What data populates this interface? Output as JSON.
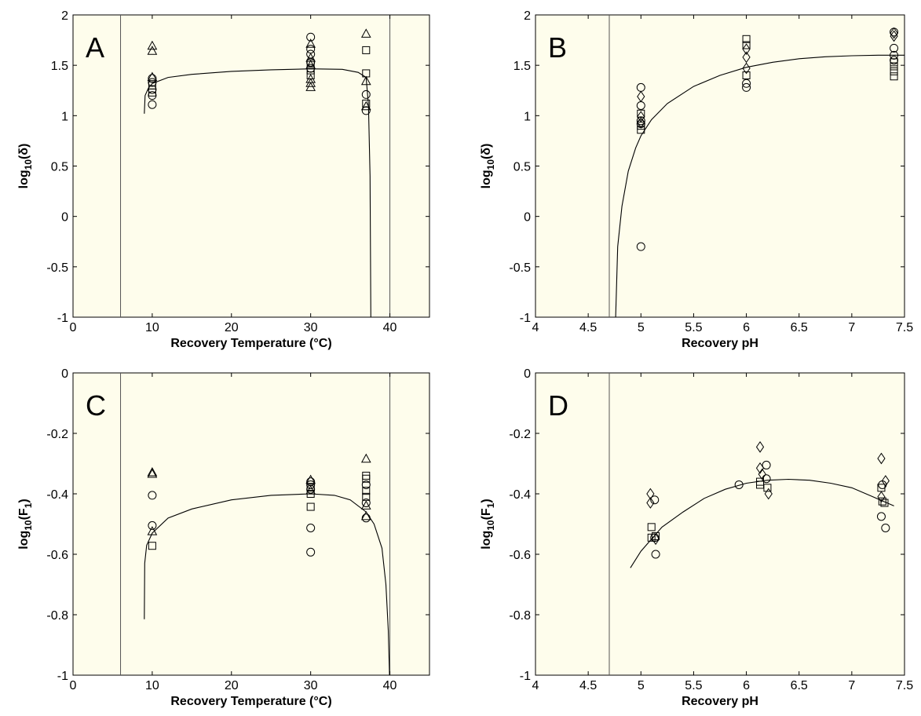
{
  "chart_data": [
    {
      "type": "scatter",
      "panel_label": "A",
      "xlabel": "Recovery Temperature (°C)",
      "ylabel_base": "log",
      "ylabel_sub": "10",
      "ylabel_arg": "(δ)",
      "xlim": [
        0,
        45
      ],
      "ylim": [
        -1,
        2
      ],
      "xticks": [
        0,
        10,
        20,
        30,
        40
      ],
      "yticks": [
        -1,
        -0.5,
        0,
        0.5,
        1,
        1.5,
        2
      ],
      "shaded_below": 6,
      "shaded_above": 40,
      "vlines": [
        6,
        40
      ],
      "curve": [
        [
          9.0,
          1.02
        ],
        [
          9.1,
          1.2
        ],
        [
          9.5,
          1.27
        ],
        [
          10,
          1.32
        ],
        [
          12,
          1.38
        ],
        [
          15,
          1.41
        ],
        [
          20,
          1.44
        ],
        [
          25,
          1.455
        ],
        [
          30,
          1.465
        ],
        [
          34,
          1.46
        ],
        [
          36,
          1.43
        ],
        [
          37,
          1.38
        ],
        [
          37.3,
          1.1
        ],
        [
          37.5,
          0.4
        ],
        [
          37.6,
          -1.0
        ]
      ],
      "points": [
        {
          "shape": "circle",
          "x": 10,
          "y": 1.11
        },
        {
          "shape": "circle",
          "x": 10,
          "y": 1.2
        },
        {
          "shape": "circle",
          "x": 10,
          "y": 1.26
        },
        {
          "shape": "circle",
          "x": 10,
          "y": 1.33
        },
        {
          "shape": "circle",
          "x": 10,
          "y": 1.37
        },
        {
          "shape": "square",
          "x": 10,
          "y": 1.23
        },
        {
          "shape": "square",
          "x": 10,
          "y": 1.3
        },
        {
          "shape": "triangle",
          "x": 10,
          "y": 1.69
        },
        {
          "shape": "triangle",
          "x": 10,
          "y": 1.64
        },
        {
          "shape": "triangle",
          "x": 10,
          "y": 1.38
        },
        {
          "shape": "circle",
          "x": 30,
          "y": 1.78
        },
        {
          "shape": "circle",
          "x": 30,
          "y": 1.66
        },
        {
          "shape": "circle",
          "x": 30,
          "y": 1.61
        },
        {
          "shape": "circle",
          "x": 30,
          "y": 1.53
        },
        {
          "shape": "circle",
          "x": 30,
          "y": 1.47
        },
        {
          "shape": "square",
          "x": 30,
          "y": 1.4
        },
        {
          "shape": "square",
          "x": 30,
          "y": 1.45
        },
        {
          "shape": "square",
          "x": 30,
          "y": 1.52
        },
        {
          "shape": "triangle",
          "x": 30,
          "y": 1.71
        },
        {
          "shape": "triangle",
          "x": 30,
          "y": 1.57
        },
        {
          "shape": "triangle",
          "x": 30,
          "y": 1.5
        },
        {
          "shape": "triangle",
          "x": 30,
          "y": 1.36
        },
        {
          "shape": "triangle",
          "x": 30,
          "y": 1.32
        },
        {
          "shape": "triangle",
          "x": 30,
          "y": 1.28
        },
        {
          "shape": "triangle",
          "x": 37,
          "y": 1.81
        },
        {
          "shape": "square",
          "x": 37,
          "y": 1.65
        },
        {
          "shape": "square",
          "x": 37,
          "y": 1.42
        },
        {
          "shape": "triangle",
          "x": 37,
          "y": 1.34
        },
        {
          "shape": "circle",
          "x": 37,
          "y": 1.21
        },
        {
          "shape": "square",
          "x": 37,
          "y": 1.12
        },
        {
          "shape": "triangle",
          "x": 37,
          "y": 1.09
        },
        {
          "shape": "circle",
          "x": 37,
          "y": 1.05
        }
      ]
    },
    {
      "type": "scatter",
      "panel_label": "B",
      "xlabel": "Recovery pH",
      "ylabel_base": "log",
      "ylabel_sub": "10",
      "ylabel_arg": "(δ)",
      "xlim": [
        4,
        7.5
      ],
      "ylim": [
        -1,
        2
      ],
      "xticks": [
        4,
        4.5,
        5,
        5.5,
        6,
        6.5,
        7,
        7.5
      ],
      "yticks": [
        -1,
        -0.5,
        0,
        0.5,
        1,
        1.5,
        2
      ],
      "shaded_below": 4.7,
      "vlines": [
        4.7
      ],
      "curve": [
        [
          4.76,
          -1.0
        ],
        [
          4.78,
          -0.3
        ],
        [
          4.82,
          0.1
        ],
        [
          4.88,
          0.45
        ],
        [
          4.95,
          0.68
        ],
        [
          5.0,
          0.8
        ],
        [
          5.1,
          0.96
        ],
        [
          5.25,
          1.12
        ],
        [
          5.5,
          1.29
        ],
        [
          5.75,
          1.4
        ],
        [
          6.0,
          1.48
        ],
        [
          6.25,
          1.53
        ],
        [
          6.5,
          1.565
        ],
        [
          6.75,
          1.585
        ],
        [
          7.0,
          1.595
        ],
        [
          7.25,
          1.6
        ],
        [
          7.5,
          1.6
        ]
      ],
      "points": [
        {
          "shape": "circle",
          "x": 5,
          "y": 1.28
        },
        {
          "shape": "circle",
          "x": 5,
          "y": 1.1
        },
        {
          "shape": "circle",
          "x": 5,
          "y": 0.95
        },
        {
          "shape": "circle",
          "x": 5,
          "y": 0.92
        },
        {
          "shape": "circle",
          "x": 5,
          "y": -0.3
        },
        {
          "shape": "diamond",
          "x": 5,
          "y": 1.19
        },
        {
          "shape": "diamond",
          "x": 5,
          "y": 0.99
        },
        {
          "shape": "diamond",
          "x": 5,
          "y": 0.93
        },
        {
          "shape": "square",
          "x": 5,
          "y": 1.02
        },
        {
          "shape": "square",
          "x": 5,
          "y": 0.9
        },
        {
          "shape": "square",
          "x": 5,
          "y": 0.86
        },
        {
          "shape": "square",
          "x": 6,
          "y": 1.76
        },
        {
          "shape": "square",
          "x": 6,
          "y": 1.7
        },
        {
          "shape": "square",
          "x": 6,
          "y": 1.4
        },
        {
          "shape": "diamond",
          "x": 6,
          "y": 1.66
        },
        {
          "shape": "diamond",
          "x": 6,
          "y": 1.58
        },
        {
          "shape": "diamond",
          "x": 6,
          "y": 1.47
        },
        {
          "shape": "circle",
          "x": 6,
          "y": 1.32
        },
        {
          "shape": "circle",
          "x": 6,
          "y": 1.28
        },
        {
          "shape": "circle",
          "x": 7.4,
          "y": 1.83
        },
        {
          "shape": "circle",
          "x": 7.4,
          "y": 1.67
        },
        {
          "shape": "circle",
          "x": 7.4,
          "y": 1.6
        },
        {
          "shape": "circle",
          "x": 7.4,
          "y": 1.55
        },
        {
          "shape": "diamond",
          "x": 7.4,
          "y": 1.82
        },
        {
          "shape": "diamond",
          "x": 7.4,
          "y": 1.79
        },
        {
          "shape": "square",
          "x": 7.4,
          "y": 1.53
        },
        {
          "shape": "square",
          "x": 7.4,
          "y": 1.49
        },
        {
          "shape": "square",
          "x": 7.4,
          "y": 1.44
        },
        {
          "shape": "square",
          "x": 7.4,
          "y": 1.39
        }
      ]
    },
    {
      "type": "scatter",
      "panel_label": "C",
      "xlabel": "Recovery Temperature (°C)",
      "ylabel_base": "log",
      "ylabel_sub": "10",
      "ylabel_arg": "(F",
      "ylabel_sub2": "1",
      "ylabel_end": ")",
      "xlim": [
        0,
        45
      ],
      "ylim": [
        -1,
        0
      ],
      "xticks": [
        0,
        10,
        20,
        30,
        40
      ],
      "yticks": [
        -1,
        -0.8,
        -0.6,
        -0.4,
        -0.2,
        0
      ],
      "shaded_below": 6,
      "shaded_above": 40,
      "vlines": [
        6,
        40
      ],
      "curve": [
        [
          9.0,
          -0.815
        ],
        [
          9.05,
          -0.63
        ],
        [
          9.3,
          -0.57
        ],
        [
          10,
          -0.53
        ],
        [
          12,
          -0.48
        ],
        [
          15,
          -0.45
        ],
        [
          20,
          -0.42
        ],
        [
          25,
          -0.405
        ],
        [
          30,
          -0.4
        ],
        [
          33,
          -0.405
        ],
        [
          35,
          -0.42
        ],
        [
          37,
          -0.46
        ],
        [
          38,
          -0.5
        ],
        [
          39,
          -0.58
        ],
        [
          39.5,
          -0.7
        ],
        [
          39.8,
          -0.85
        ],
        [
          39.95,
          -1.0
        ]
      ],
      "points": [
        {
          "shape": "triangle",
          "x": 10,
          "y": -0.33
        },
        {
          "shape": "triangle",
          "x": 10,
          "y": -0.335
        },
        {
          "shape": "circle",
          "x": 10,
          "y": -0.405
        },
        {
          "shape": "circle",
          "x": 10,
          "y": -0.505
        },
        {
          "shape": "triangle",
          "x": 10,
          "y": -0.525
        },
        {
          "shape": "square",
          "x": 10,
          "y": -0.572
        },
        {
          "shape": "triangle",
          "x": 30,
          "y": -0.355
        },
        {
          "shape": "circle",
          "x": 30,
          "y": -0.36
        },
        {
          "shape": "circle",
          "x": 30,
          "y": -0.37
        },
        {
          "shape": "square",
          "x": 30,
          "y": -0.38
        },
        {
          "shape": "triangle",
          "x": 30,
          "y": -0.39
        },
        {
          "shape": "square",
          "x": 30,
          "y": -0.4
        },
        {
          "shape": "circle",
          "x": 30,
          "y": -0.385
        },
        {
          "shape": "square",
          "x": 30,
          "y": -0.443
        },
        {
          "shape": "circle",
          "x": 30,
          "y": -0.513
        },
        {
          "shape": "circle",
          "x": 30,
          "y": -0.593
        },
        {
          "shape": "triangle",
          "x": 37,
          "y": -0.285
        },
        {
          "shape": "square",
          "x": 37,
          "y": -0.34
        },
        {
          "shape": "square",
          "x": 37,
          "y": -0.35
        },
        {
          "shape": "circle",
          "x": 37,
          "y": -0.37
        },
        {
          "shape": "square",
          "x": 37,
          "y": -0.39
        },
        {
          "shape": "square",
          "x": 37,
          "y": -0.41
        },
        {
          "shape": "circle",
          "x": 37,
          "y": -0.43
        },
        {
          "shape": "triangle",
          "x": 37,
          "y": -0.44
        },
        {
          "shape": "triangle",
          "x": 37,
          "y": -0.475
        },
        {
          "shape": "circle",
          "x": 37,
          "y": -0.48
        }
      ]
    },
    {
      "type": "scatter",
      "panel_label": "D",
      "xlabel": "Recovery pH",
      "ylabel_base": "log",
      "ylabel_sub": "10",
      "ylabel_arg": "(F",
      "ylabel_sub2": "1",
      "ylabel_end": ")",
      "xlim": [
        4,
        7.5
      ],
      "ylim": [
        -1,
        0
      ],
      "xticks": [
        4,
        4.5,
        5,
        5.5,
        6,
        6.5,
        7,
        7.5
      ],
      "yticks": [
        -1,
        -0.8,
        -0.6,
        -0.4,
        -0.2,
        0
      ],
      "shaded_below": 4.7,
      "vlines": [
        4.7
      ],
      "curve": [
        [
          4.9,
          -0.645
        ],
        [
          5.0,
          -0.59
        ],
        [
          5.2,
          -0.51
        ],
        [
          5.4,
          -0.46
        ],
        [
          5.6,
          -0.415
        ],
        [
          5.8,
          -0.385
        ],
        [
          6.0,
          -0.365
        ],
        [
          6.2,
          -0.355
        ],
        [
          6.4,
          -0.352
        ],
        [
          6.6,
          -0.355
        ],
        [
          6.8,
          -0.365
        ],
        [
          7.0,
          -0.38
        ],
        [
          7.2,
          -0.41
        ],
        [
          7.4,
          -0.44
        ]
      ],
      "points": [
        {
          "shape": "diamond",
          "x": 5.09,
          "y": -0.4
        },
        {
          "shape": "diamond",
          "x": 5.09,
          "y": -0.43
        },
        {
          "shape": "circle",
          "x": 5.13,
          "y": -0.42
        },
        {
          "shape": "square",
          "x": 5.1,
          "y": -0.51
        },
        {
          "shape": "square",
          "x": 5.1,
          "y": -0.545
        },
        {
          "shape": "square",
          "x": 5.14,
          "y": -0.54
        },
        {
          "shape": "circle",
          "x": 5.13,
          "y": -0.545
        },
        {
          "shape": "diamond",
          "x": 5.14,
          "y": -0.55
        },
        {
          "shape": "circle",
          "x": 5.14,
          "y": -0.6
        },
        {
          "shape": "circle",
          "x": 5.93,
          "y": -0.37
        },
        {
          "shape": "diamond",
          "x": 6.13,
          "y": -0.245
        },
        {
          "shape": "diamond",
          "x": 6.13,
          "y": -0.315
        },
        {
          "shape": "circle",
          "x": 6.19,
          "y": -0.305
        },
        {
          "shape": "diamond",
          "x": 6.15,
          "y": -0.335
        },
        {
          "shape": "circle",
          "x": 6.19,
          "y": -0.35
        },
        {
          "shape": "square",
          "x": 6.13,
          "y": -0.36
        },
        {
          "shape": "square",
          "x": 6.13,
          "y": -0.37
        },
        {
          "shape": "square",
          "x": 6.2,
          "y": -0.38
        },
        {
          "shape": "diamond",
          "x": 6.21,
          "y": -0.4
        },
        {
          "shape": "diamond",
          "x": 7.28,
          "y": -0.283
        },
        {
          "shape": "diamond",
          "x": 7.32,
          "y": -0.357
        },
        {
          "shape": "circle",
          "x": 7.29,
          "y": -0.37
        },
        {
          "shape": "square",
          "x": 7.28,
          "y": -0.38
        },
        {
          "shape": "diamond",
          "x": 7.28,
          "y": -0.41
        },
        {
          "shape": "square",
          "x": 7.29,
          "y": -0.425
        },
        {
          "shape": "square",
          "x": 7.31,
          "y": -0.43
        },
        {
          "shape": "circle",
          "x": 7.28,
          "y": -0.475
        },
        {
          "shape": "circle",
          "x": 7.32,
          "y": -0.513
        }
      ]
    }
  ]
}
